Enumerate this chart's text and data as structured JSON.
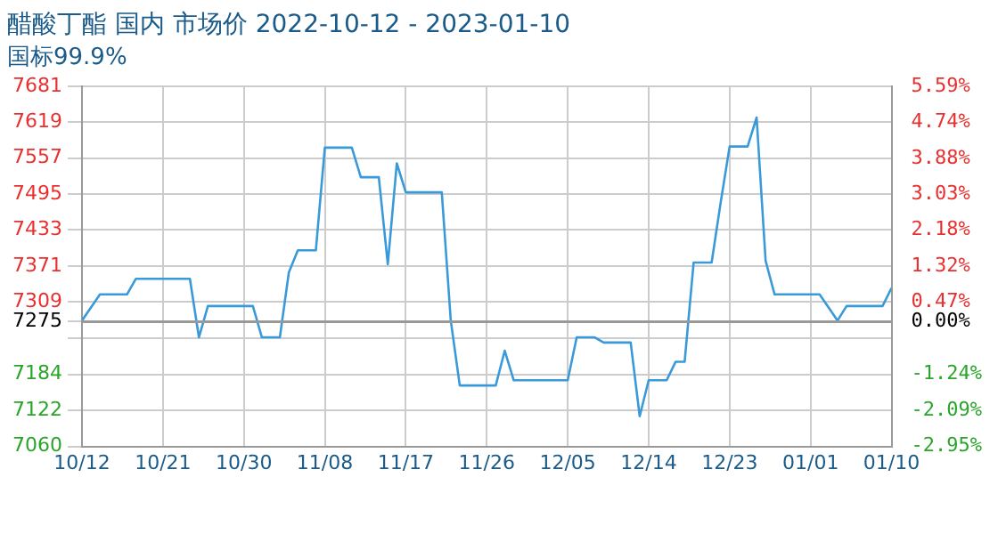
{
  "chart_data": {
    "type": "line",
    "title": "醋酸丁酯 国内 市场价 2022-10-12 - 2023-01-10",
    "subtitle": "国标99.9%",
    "x": [
      "2022-10-12",
      "2022-10-14",
      "2022-10-17",
      "2022-10-18",
      "2022-10-24",
      "2022-10-25",
      "2022-10-26",
      "2022-10-31",
      "2022-11-01",
      "2022-11-03",
      "2022-11-04",
      "2022-11-05",
      "2022-11-07",
      "2022-11-08",
      "2022-11-11",
      "2022-11-12",
      "2022-11-14",
      "2022-11-15",
      "2022-11-16",
      "2022-11-17",
      "2022-11-21",
      "2022-11-22",
      "2022-11-23",
      "2022-11-27",
      "2022-11-28",
      "2022-11-29",
      "2022-12-05",
      "2022-12-06",
      "2022-12-08",
      "2022-12-09",
      "2022-12-12",
      "2022-12-13",
      "2022-12-14",
      "2022-12-16",
      "2022-12-17",
      "2022-12-18",
      "2022-12-19",
      "2022-12-21",
      "2022-12-22",
      "2022-12-23",
      "2022-12-25",
      "2022-12-26",
      "2022-12-27",
      "2022-12-28",
      "2023-01-02",
      "2023-01-04",
      "2023-01-05",
      "2023-01-09",
      "2023-01-10"
    ],
    "series": [
      {
        "color": "#3a9ad9",
        "values": [
          7277,
          7322,
          7322,
          7349,
          7349,
          7248,
          7302,
          7302,
          7248,
          7248,
          7360,
          7398,
          7398,
          7575,
          7575,
          7524,
          7524,
          7374,
          7548,
          7498,
          7498,
          7277,
          7165,
          7165,
          7225,
          7174,
          7174,
          7248,
          7248,
          7239,
          7239,
          7112,
          7174,
          7174,
          7206,
          7206,
          7377,
          7377,
          7480,
          7577,
          7577,
          7627,
          7380,
          7322,
          7322,
          7277,
          7302,
          7302,
          7333
        ]
      }
    ],
    "xlim": [
      "2022-10-12",
      "2023-01-10"
    ],
    "xticks": [
      {
        "value": "2022-10-12",
        "label": "10/12"
      },
      {
        "value": "2022-10-21",
        "label": "10/21"
      },
      {
        "value": "2022-10-30",
        "label": "10/30"
      },
      {
        "value": "2022-11-08",
        "label": "11/08"
      },
      {
        "value": "2022-11-17",
        "label": "11/17"
      },
      {
        "value": "2022-11-26",
        "label": "11/26"
      },
      {
        "value": "2022-12-05",
        "label": "12/05"
      },
      {
        "value": "2022-12-14",
        "label": "12/14"
      },
      {
        "value": "2022-12-23",
        "label": "12/23"
      },
      {
        "value": "2023-01-01",
        "label": "01/01"
      },
      {
        "value": "2023-01-10",
        "label": "01/10"
      }
    ],
    "ylim": [
      7060,
      7681
    ],
    "yticks": [
      7060,
      7122,
      7184,
      {
        "value": 7246,
        "label": null
      },
      7275,
      7309,
      7371,
      7433,
      7495,
      7557,
      7619,
      7681
    ],
    "y2lim": [
      -2.95,
      5.59
    ],
    "y2ticks": [
      {
        "value": -2.95,
        "label": "-2.95%"
      },
      {
        "value": -2.09,
        "label": "-2.09%"
      },
      {
        "value": -1.24,
        "label": "-1.24%"
      },
      {
        "value": 0,
        "label": "0.00%"
      },
      {
        "value": 0.47,
        "label": "0.47%"
      },
      {
        "value": 1.32,
        "label": "1.32%"
      },
      {
        "value": 2.18,
        "label": "2.18%"
      },
      {
        "value": 3.03,
        "label": "3.03%"
      },
      {
        "value": 3.88,
        "label": "3.88%"
      },
      {
        "value": 4.74,
        "label": "4.74%"
      },
      {
        "value": 5.59,
        "label": "5.59%"
      }
    ],
    "ref_lines": [
      {
        "axis": "y",
        "value": 7275,
        "color": "#999999",
        "line_style": "solid"
      }
    ],
    "grid": true,
    "legend": false,
    "marker": "none",
    "line_style": "solid"
  }
}
